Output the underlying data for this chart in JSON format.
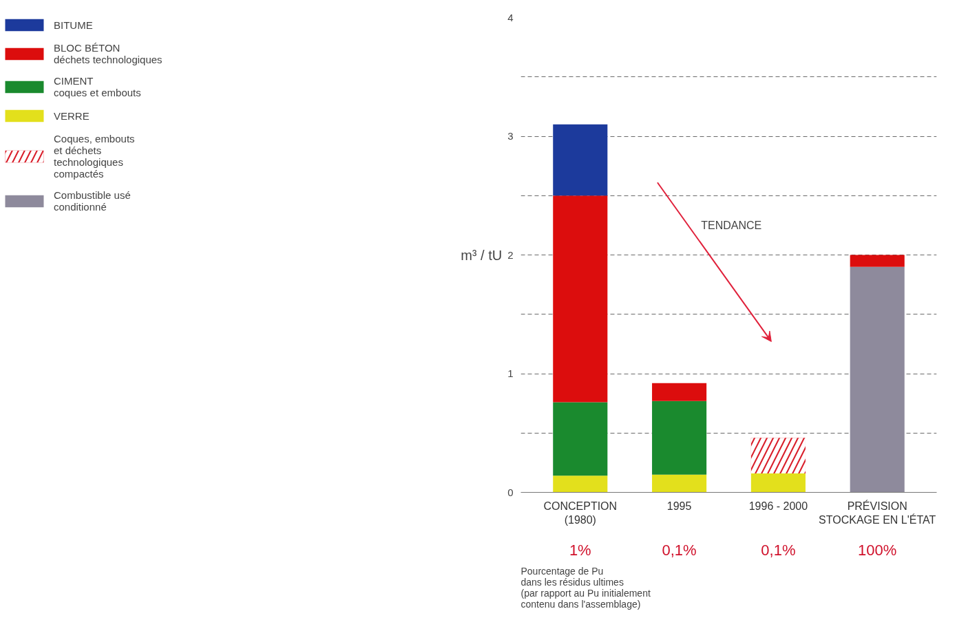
{
  "chart_data": {
    "type": "bar",
    "stacked": true,
    "categories": [
      "CONCEPTION\n(1980)",
      "1995",
      "1996 - 2000",
      "PRÉVISION\nSTOCKAGE EN L'ÉTAT"
    ],
    "series": [
      {
        "name": "VERRE",
        "color": "#e3e01c",
        "values": [
          0.14,
          0.15,
          0.16,
          null
        ]
      },
      {
        "name": "CIMENT\ncoques et embouts",
        "color": "#1a8a2e",
        "values": [
          0.62,
          0.62,
          null,
          null
        ]
      },
      {
        "name": "Coques, embouts\net déchets\ntechnologiques\ncompactés",
        "color": "#d91e2a",
        "values": [
          null,
          null,
          0.3,
          null
        ]
      },
      {
        "name": "Combustible usé\nconditionné",
        "color": "#8e8a9c",
        "values": [
          null,
          null,
          null,
          1.9
        ]
      },
      {
        "name": "BLOC BÉTON\ndéchets technologiques",
        "color": "#dc0d0d",
        "values": [
          1.74,
          0.15,
          null,
          0.1
        ]
      },
      {
        "name": "BITUME",
        "color": "#1c3a9c",
        "values": [
          0.6,
          null,
          null,
          null
        ]
      }
    ],
    "ylim": [
      0,
      4
    ],
    "yticks": [
      0,
      {
        "value": 0.5,
        "label": null
      },
      1,
      {
        "value": 1.5,
        "label": null
      },
      2,
      {
        "value": 2.5,
        "label": null
      },
      3,
      {
        "value": 3.5,
        "label": null
      },
      4
    ],
    "ylabel": "m³ / tU",
    "grid": "y",
    "legend": "left",
    "annotations": [
      "TENDANCE",
      "Pourcentage de Pu\ndans les résidus ultimes\n(par rapport au Pu initialement\ncontenu dans l'assemblage)",
      "1%",
      "0,1%",
      "0,1%",
      "100%"
    ]
  }
}
